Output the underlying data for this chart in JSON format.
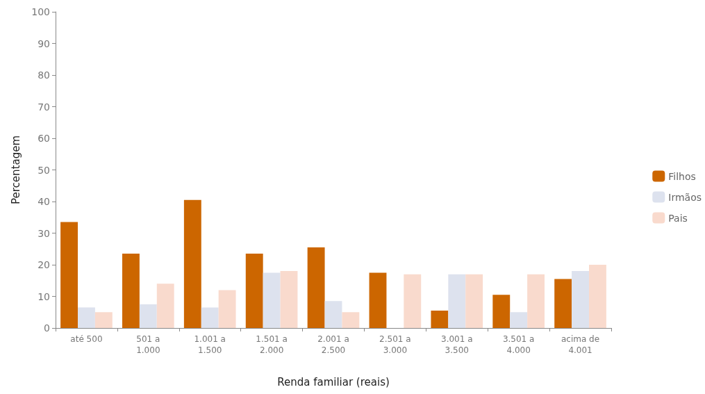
{
  "chart_data": {
    "type": "bar",
    "xlabel": "Renda familiar (reais)",
    "ylabel": "Percentagem",
    "categories": [
      "até 500",
      "501 a\n1.000",
      "1.001 a\n1.500",
      "1.501 a\n2.000",
      "2.001 a\n2.500",
      "2.501 a\n3.000",
      "3.001 a\n3.500",
      "3.501 a\n4.000",
      "acima de\n4.001"
    ],
    "series": [
      {
        "name": "Filhos",
        "color": "#cc6600",
        "values": [
          33.5,
          23.5,
          40.5,
          23.5,
          25.5,
          17.5,
          5.5,
          10.5,
          15.5
        ]
      },
      {
        "name": "Irmãos",
        "color": "#dde2ee",
        "values": [
          6.5,
          7.5,
          6.5,
          17.5,
          8.5,
          0,
          17,
          5,
          18
        ]
      },
      {
        "name": "Pais",
        "color": "#f9dacd",
        "values": [
          5,
          14,
          12,
          18,
          5,
          17,
          17,
          17,
          20
        ]
      }
    ],
    "ylim": [
      0,
      100
    ],
    "yticks": [
      0,
      10,
      20,
      30,
      40,
      50,
      60,
      70,
      80,
      90,
      100
    ],
    "grid": false,
    "legend": "right"
  }
}
